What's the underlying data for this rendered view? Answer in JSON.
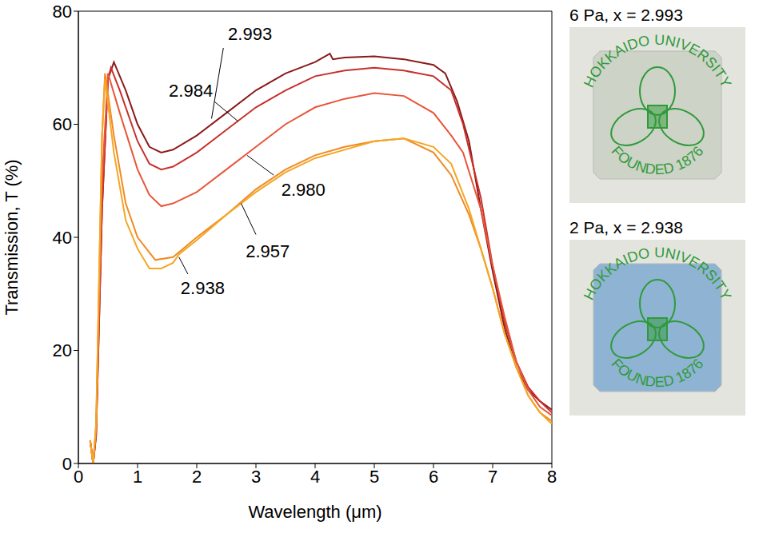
{
  "chart_data": {
    "type": "line",
    "x_label": "Wavelength (μm)",
    "y_label": "Transmission, T (%)",
    "xlim": [
      0,
      8
    ],
    "xticks": [
      0,
      1,
      2,
      3,
      4,
      5,
      6,
      7,
      8
    ],
    "ylim": [
      0,
      80
    ],
    "yticks": [
      0,
      20,
      40,
      60,
      80
    ],
    "grid": false,
    "series": [
      {
        "name": "2.993",
        "color": "#8b1a1a",
        "x": [
          0.2,
          0.25,
          0.3,
          0.4,
          0.5,
          0.6,
          0.8,
          1.0,
          1.2,
          1.4,
          1.6,
          2.0,
          2.5,
          3.0,
          3.5,
          4.0,
          4.25,
          4.3,
          4.5,
          5.0,
          5.5,
          6.0,
          6.2,
          6.4,
          6.6,
          6.8,
          7.0,
          7.2,
          7.4,
          7.6,
          7.8,
          8.0
        ],
        "values": [
          4,
          0,
          5,
          45,
          68,
          71,
          66,
          60,
          56,
          55,
          55.5,
          58,
          62,
          66,
          69,
          71,
          72.5,
          71.5,
          71.8,
          72,
          71.5,
          70.5,
          69,
          64,
          57,
          45,
          34,
          24,
          17,
          13,
          11,
          9.5
        ]
      },
      {
        "name": "2.984",
        "color": "#c8302c",
        "x": [
          0.2,
          0.25,
          0.3,
          0.4,
          0.5,
          0.55,
          0.7,
          1.0,
          1.2,
          1.4,
          1.6,
          2.0,
          2.5,
          3.0,
          3.5,
          4.0,
          4.5,
          5.0,
          5.5,
          6.0,
          6.3,
          6.5,
          6.8,
          7.0,
          7.2,
          7.4,
          7.6,
          7.8,
          8.0
        ],
        "values": [
          4,
          0,
          5,
          45,
          68,
          70,
          66,
          57,
          53,
          52,
          52.5,
          55,
          59,
          63,
          66,
          68.5,
          69.5,
          70,
          69.5,
          68.5,
          66,
          60,
          47,
          35,
          25,
          18,
          13.5,
          11,
          9
        ]
      },
      {
        "name": "2.980",
        "color": "#e8563a",
        "x": [
          0.2,
          0.25,
          0.3,
          0.4,
          0.5,
          0.7,
          1.0,
          1.2,
          1.4,
          1.6,
          2.0,
          2.5,
          3.0,
          3.5,
          4.0,
          4.5,
          5.0,
          5.5,
          6.0,
          6.3,
          6.5,
          6.8,
          7.0,
          7.2,
          7.4,
          7.6,
          7.8,
          8.0
        ],
        "values": [
          4,
          0,
          6,
          50,
          69,
          62,
          52,
          47.5,
          45.5,
          46,
          48,
          52,
          56,
          60,
          63,
          64.5,
          65.5,
          65,
          62,
          58,
          55,
          45,
          35,
          26,
          18,
          13,
          10,
          8.5
        ]
      },
      {
        "name": "2.957",
        "color": "#f08a24",
        "x": [
          0.2,
          0.25,
          0.3,
          0.4,
          0.45,
          0.6,
          0.8,
          1.0,
          1.3,
          1.6,
          2.0,
          2.5,
          3.0,
          3.5,
          4.0,
          4.5,
          5.0,
          5.5,
          6.0,
          6.3,
          6.6,
          6.8,
          7.0,
          7.2,
          7.4,
          7.6,
          7.8,
          8.0
        ],
        "values": [
          4,
          0,
          7,
          58,
          69,
          58,
          46,
          40,
          36,
          36.5,
          40,
          44,
          48.5,
          52,
          54.5,
          56,
          57,
          57.5,
          55,
          51,
          44,
          38,
          31,
          23,
          17,
          12,
          9,
          7.5
        ]
      },
      {
        "name": "2.938",
        "color": "#f5a623",
        "x": [
          0.2,
          0.25,
          0.3,
          0.4,
          0.45,
          0.6,
          0.8,
          1.0,
          1.2,
          1.4,
          1.6,
          1.7,
          2.0,
          2.5,
          3.0,
          3.5,
          4.0,
          4.5,
          5.0,
          5.5,
          6.0,
          6.3,
          6.6,
          6.8,
          7.0,
          7.2,
          7.4,
          7.6,
          7.8,
          8.0
        ],
        "values": [
          4,
          0,
          7,
          58,
          68,
          55,
          43,
          38,
          34.5,
          34.5,
          35.5,
          37,
          39.5,
          44,
          48,
          51.5,
          54,
          55.5,
          57,
          57.5,
          56,
          53,
          45,
          38,
          31,
          23,
          17,
          12,
          9,
          7
        ]
      }
    ]
  },
  "photos": [
    {
      "label": "6 Pa, x = 2.993",
      "film_color": "#cdd3c6",
      "text": [
        "HOKKAIDO UNIVERSITY",
        "FOUNDED 1876"
      ]
    },
    {
      "label": "2 Pa, x = 2.938",
      "film_color": "#8fb3d3",
      "text": [
        "HOKKAIDO UNIVERSITY",
        "FOUNDED 1876"
      ]
    }
  ]
}
